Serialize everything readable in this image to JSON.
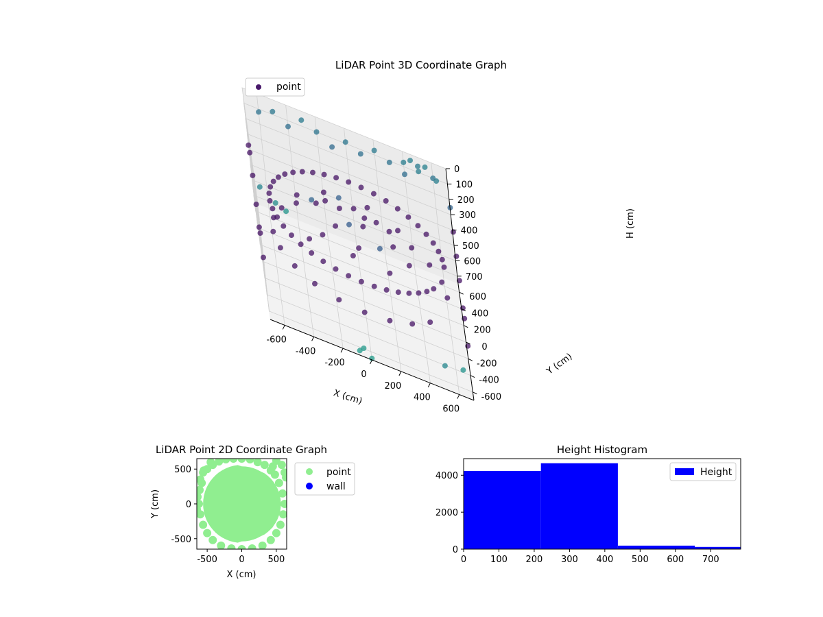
{
  "chart_data": [
    {
      "type": "scatter",
      "projection": "3d",
      "title": "LiDAR Point 3D Coordinate Graph",
      "xlabel": "X (cm)",
      "ylabel": "Y (cm)",
      "zlabel": "H (cm)",
      "xlim": [
        -700,
        700
      ],
      "ylim": [
        -700,
        700
      ],
      "zlim": [
        750,
        0
      ],
      "xticks": [
        -600,
        -400,
        -200,
        0,
        200,
        400,
        600
      ],
      "yticks": [
        -600,
        -400,
        -200,
        0,
        200,
        400,
        600
      ],
      "zticks": [
        0,
        100,
        200,
        300,
        400,
        500,
        600,
        700
      ],
      "z_axis_inverted": true,
      "colormap": "viridis",
      "grid": true,
      "legend": {
        "location": "upper-left",
        "entries": [
          {
            "label": "point",
            "color": "#48186a"
          }
        ]
      },
      "series": [
        {
          "name": "point",
          "marker_color_by": "height",
          "points": [
            [
              600,
              0,
              300
            ],
            [
              594,
              87,
              300
            ],
            [
              575,
              172,
              300
            ],
            [
              545,
              252,
              300
            ],
            [
              503,
              328,
              300
            ],
            [
              451,
              395,
              300
            ],
            [
              390,
              456,
              300
            ],
            [
              320,
              507,
              300
            ],
            [
              243,
              549,
              300
            ],
            [
              161,
              578,
              300
            ],
            [
              76,
              595,
              300
            ],
            [
              -10,
              600,
              300
            ],
            [
              -96,
              592,
              300
            ],
            [
              -180,
              572,
              300
            ],
            [
              -261,
              540,
              300
            ],
            [
              -336,
              497,
              300
            ],
            [
              -404,
              443,
              300
            ],
            [
              -465,
              379,
              300
            ],
            [
              -515,
              308,
              300
            ],
            [
              -555,
              229,
              300
            ],
            [
              -583,
              144,
              300
            ],
            [
              -598,
              57,
              300
            ],
            [
              -600,
              -35,
              300
            ],
            [
              -588,
              -121,
              300
            ],
            [
              -563,
              -205,
              300
            ],
            [
              -526,
              -288,
              300
            ],
            [
              -477,
              -363,
              300
            ],
            [
              -418,
              -431,
              300
            ],
            [
              -349,
              -488,
              300
            ],
            [
              -272,
              -535,
              300
            ],
            [
              -189,
              -569,
              300
            ],
            [
              -103,
              -591,
              300
            ],
            [
              -15,
              -600,
              300
            ],
            [
              74,
              -595,
              300
            ],
            [
              160,
              -578,
              300
            ],
            [
              243,
              -548,
              300
            ],
            [
              320,
              -507,
              300
            ],
            [
              390,
              -456,
              300
            ],
            [
              451,
              -395,
              300
            ],
            [
              503,
              -327,
              300
            ],
            [
              600,
              0,
              500
            ],
            [
              575,
              172,
              500
            ],
            [
              503,
              328,
              500
            ],
            [
              390,
              456,
              500
            ],
            [
              243,
              549,
              500
            ],
            [
              76,
              595,
              500
            ],
            [
              -96,
              592,
              500
            ],
            [
              -261,
              540,
              500
            ],
            [
              -404,
              443,
              500
            ],
            [
              -515,
              308,
              500
            ],
            [
              -583,
              144,
              500
            ],
            [
              -600,
              -35,
              500
            ],
            [
              -563,
              -205,
              500
            ],
            [
              -477,
              -363,
              500
            ],
            [
              -349,
              -488,
              500
            ],
            [
              -189,
              -569,
              500
            ],
            [
              -15,
              -600,
              500
            ],
            [
              160,
              -578,
              500
            ],
            [
              320,
              -507,
              500
            ],
            [
              451,
              -395,
              500
            ],
            [
              -300,
              0,
              200
            ],
            [
              -200,
              150,
              250
            ],
            [
              -100,
              200,
              220
            ],
            [
              0,
              250,
              280
            ],
            [
              150,
              150,
              260
            ],
            [
              250,
              0,
              300
            ],
            [
              150,
              -200,
              240
            ],
            [
              0,
              -150,
              320
            ],
            [
              -150,
              -100,
              260
            ],
            [
              -250,
              -200,
              300
            ],
            [
              -200,
              400,
              330
            ],
            [
              100,
              350,
              290
            ],
            [
              300,
              250,
              310
            ],
            [
              350,
              -100,
              330
            ],
            [
              200,
              -350,
              300
            ],
            [
              -50,
              -350,
              280
            ],
            [
              -350,
              -300,
              310
            ],
            [
              -400,
              100,
              260
            ],
            [
              50,
              50,
              270
            ],
            [
              -50,
              -50,
              240
            ],
            [
              -600,
              700,
              120
            ],
            [
              -500,
              700,
              80
            ],
            [
              -400,
              700,
              140
            ],
            [
              -300,
              700,
              60
            ],
            [
              -200,
              700,
              100
            ],
            [
              -100,
              700,
              160
            ],
            [
              0,
              700,
              90
            ],
            [
              100,
              700,
              130
            ],
            [
              200,
              700,
              70
            ],
            [
              300,
              700,
              110
            ],
            [
              400,
              700,
              150
            ],
            [
              500,
              700,
              60
            ],
            [
              600,
              700,
              100
            ],
            [
              -700,
              -600,
              400
            ],
            [
              -700,
              -400,
              350
            ],
            [
              -700,
              -200,
              420
            ],
            [
              -700,
              0,
              380
            ],
            [
              -700,
              200,
              300
            ],
            [
              -700,
              400,
              260
            ],
            [
              -700,
              600,
              320
            ],
            [
              700,
              -600,
              450
            ],
            [
              700,
              -400,
              380
            ],
            [
              700,
              -200,
              420
            ],
            [
              700,
              0,
              350
            ],
            [
              700,
              200,
              300
            ],
            [
              700,
              400,
              250
            ],
            [
              700,
              600,
              200
            ],
            [
              500,
              600,
              40
            ],
            [
              550,
              650,
              20
            ],
            [
              450,
              680,
              30
            ],
            [
              620,
              560,
              35
            ],
            [
              400,
              650,
              45
            ],
            [
              -650,
              650,
              600
            ],
            [
              -550,
              620,
              650
            ],
            [
              -480,
              660,
              700
            ],
            [
              520,
              -650,
              620
            ],
            [
              650,
              -500,
              680
            ],
            [
              -50,
              -650,
              720
            ],
            [
              0,
              -700,
              740
            ],
            [
              -80,
              -680,
              730
            ]
          ]
        }
      ]
    },
    {
      "type": "scatter",
      "title": "LiDAR Point 2D Coordinate Graph",
      "xlabel": "X (cm)",
      "ylabel": "Y (cm)",
      "xlim": [
        -650,
        650
      ],
      "ylim": [
        -650,
        650
      ],
      "xticks": [
        -500,
        0,
        500
      ],
      "yticks": [
        -500,
        0,
        500
      ],
      "grid": false,
      "legend": {
        "location": "outside-right",
        "entries": [
          {
            "label": "point",
            "color": "#90ee90"
          },
          {
            "label": "wall",
            "color": "#0000ff"
          }
        ]
      },
      "series": [
        {
          "name": "point",
          "color": "#90ee90",
          "points": [
            [
              -600,
              350
            ],
            [
              -560,
              450
            ],
            [
              -500,
              500
            ],
            [
              -420,
              560
            ],
            [
              -330,
              610
            ],
            [
              -230,
              640
            ],
            [
              -120,
              650
            ],
            [
              0,
              650
            ],
            [
              120,
              640
            ],
            [
              230,
              600
            ],
            [
              330,
              560
            ],
            [
              420,
              480
            ],
            [
              480,
              420
            ],
            [
              540,
              300
            ],
            [
              590,
              150
            ],
            [
              620,
              0
            ],
            [
              600,
              -150
            ],
            [
              560,
              -300
            ],
            [
              500,
              -420
            ],
            [
              420,
              -520
            ],
            [
              300,
              -600
            ],
            [
              150,
              -640
            ],
            [
              0,
              -650
            ],
            [
              -150,
              -640
            ],
            [
              -300,
              -600
            ],
            [
              -420,
              -520
            ],
            [
              -500,
              -420
            ],
            [
              -560,
              -300
            ],
            [
              -600,
              -150
            ],
            [
              -620,
              0
            ],
            [
              -610,
              200
            ],
            [
              -580,
              300
            ],
            [
              -300,
              400
            ],
            [
              -200,
              300
            ],
            [
              -100,
              200
            ],
            [
              0,
              100
            ],
            [
              100,
              0
            ],
            [
              200,
              -100
            ],
            [
              300,
              -200
            ],
            [
              -200,
              -200
            ],
            [
              -300,
              -400
            ],
            [
              0,
              -300
            ],
            [
              200,
              -400
            ],
            [
              400,
              -300
            ],
            [
              300,
              200
            ],
            [
              100,
              400
            ],
            [
              -400,
              0
            ],
            [
              -100,
              -100
            ],
            [
              0,
              300
            ],
            [
              200,
              200
            ],
            [
              -250,
              100
            ],
            [
              150,
              -250
            ],
            [
              -550,
              480
            ],
            [
              -450,
              600
            ],
            [
              -330,
              680
            ],
            [
              620,
              450
            ],
            [
              580,
              560
            ],
            [
              640,
              380
            ],
            [
              500,
              620
            ],
            [
              450,
              540
            ],
            [
              -640,
              100
            ],
            [
              -650,
              -80
            ]
          ]
        },
        {
          "name": "wall",
          "color": "#0000ff",
          "points": []
        }
      ]
    },
    {
      "type": "bar",
      "subtype": "histogram",
      "title": "Height Histogram",
      "xlim": [
        0,
        785
      ],
      "ylim": [
        0,
        4900
      ],
      "xticks": [
        0,
        100,
        200,
        300,
        400,
        500,
        600,
        700
      ],
      "yticks": [
        0,
        2000,
        4000
      ],
      "grid": false,
      "legend": {
        "location": "top-right",
        "entries": [
          {
            "label": "Height",
            "color": "#0000ff"
          }
        ]
      },
      "series": [
        {
          "name": "Height",
          "color": "#0000ff",
          "bins": [
            {
              "start": 0,
              "end": 219,
              "count": 4230
            },
            {
              "start": 219,
              "end": 437,
              "count": 4650
            },
            {
              "start": 437,
              "end": 655,
              "count": 190
            },
            {
              "start": 655,
              "end": 785,
              "count": 120
            }
          ]
        }
      ]
    }
  ]
}
